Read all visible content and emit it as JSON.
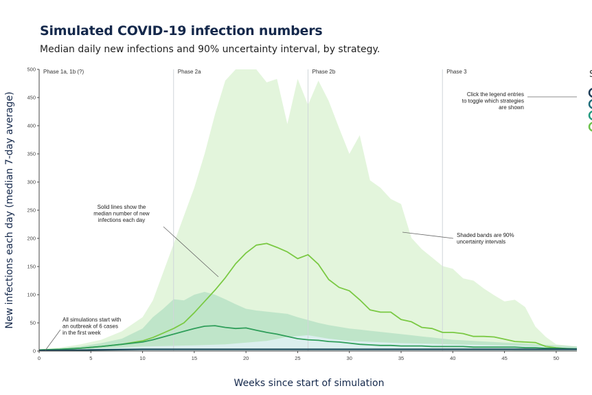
{
  "header": {
    "title": "Simulated COVID-19 infection numbers",
    "subtitle": "Median daily new infections and 90% uncertainty interval, by strategy."
  },
  "colors": {
    "band_light": "#e2f4da",
    "band_mid": "#b9e2c6",
    "band_pale": "#dceff0",
    "line_light_green": "#7ac943",
    "line_green": "#2f9e5a",
    "line_dark": "#1c4a5a",
    "legend_colors": [
      "#1d3c57",
      "#1f6d7a",
      "#229a7e",
      "#6cc24a"
    ]
  },
  "chart_data": {
    "type": "line",
    "xlabel": "Weeks since start of simulation",
    "ylabel": "New infections each day (median 7-day average)",
    "xlim": [
      0,
      52
    ],
    "ylim": [
      0,
      500
    ],
    "xticks": [
      0,
      5,
      10,
      15,
      20,
      25,
      30,
      35,
      40,
      45,
      50
    ],
    "yticks": [
      0,
      50,
      100,
      150,
      200,
      250,
      300,
      350,
      400,
      450,
      500
    ],
    "grid": false,
    "legend": "top-right (partially visible)",
    "legend_title": "S",
    "phases": [
      {
        "label": "Phase 1a, 1b (?)",
        "week": 0
      },
      {
        "label": "Phase 2a",
        "week": 13
      },
      {
        "label": "Phase 2b",
        "week": 26
      },
      {
        "label": "Phase 3",
        "week": 39
      }
    ],
    "annotations": [
      {
        "text": [
          "All simulations start with",
          "an outbreak of 6 cases",
          "in the first week"
        ]
      },
      {
        "text": [
          "Solid lines show the",
          "median number of new",
          "infections each day"
        ]
      },
      {
        "text": [
          "Shaded bands are 90%",
          "uncertainty intervals"
        ]
      },
      {
        "text": [
          "Click the legend entries",
          "to toggle which strategies",
          "are shown"
        ]
      }
    ],
    "series": [
      {
        "color": "#7ac943",
        "band_color": "#e2f4da",
        "x": [
          0,
          2,
          4,
          6,
          8,
          10,
          11,
          12,
          13,
          14,
          15,
          16,
          17,
          18,
          19,
          20,
          21,
          22,
          23,
          24,
          25,
          26,
          27,
          28,
          29,
          30,
          31,
          32,
          33,
          34,
          35,
          36,
          37,
          38,
          39,
          40,
          41,
          42,
          43,
          44,
          45,
          46,
          47,
          48,
          49,
          50,
          52
        ],
        "median": [
          2,
          3,
          5,
          8,
          12,
          18,
          24,
          32,
          40,
          50,
          68,
          88,
          108,
          130,
          155,
          174,
          188,
          191,
          184,
          176,
          164,
          171,
          154,
          127,
          113,
          107,
          91,
          73,
          69,
          69,
          56,
          52,
          42,
          40,
          33,
          33,
          31,
          26,
          26,
          25,
          21,
          17,
          16,
          15,
          8,
          6,
          3
        ],
        "upper": [
          3,
          6,
          12,
          20,
          35,
          60,
          90,
          140,
          190,
          240,
          290,
          350,
          420,
          480,
          500,
          500,
          500,
          477,
          483,
          403,
          483,
          437,
          480,
          444,
          396,
          350,
          383,
          303,
          290,
          270,
          261,
          201,
          181,
          166,
          151,
          146,
          129,
          125,
          111,
          99,
          88,
          91,
          78,
          43,
          25,
          12,
          8
        ],
        "lower": [
          1,
          1,
          2,
          2,
          3,
          4,
          4,
          5,
          6,
          6,
          7,
          8,
          8,
          9,
          9,
          9,
          9,
          9,
          8,
          8,
          8,
          7,
          7,
          6,
          6,
          5,
          5,
          4,
          4,
          4,
          3,
          3,
          3,
          3,
          2,
          2,
          2,
          2,
          2,
          2,
          1,
          1,
          1,
          1,
          1,
          1,
          1
        ]
      },
      {
        "color": "#2f9e5a",
        "band_color": "#b9e2c6",
        "x": [
          0,
          2,
          4,
          6,
          8,
          10,
          11,
          12,
          13,
          14,
          15,
          16,
          17,
          18,
          19,
          20,
          21,
          22,
          23,
          24,
          25,
          26,
          27,
          28,
          29,
          30,
          31,
          32,
          33,
          34,
          35,
          36,
          37,
          38,
          39,
          40,
          41,
          42,
          43,
          44,
          45,
          46,
          47,
          48,
          49,
          50,
          52
        ],
        "median": [
          2,
          3,
          5,
          8,
          12,
          16,
          20,
          25,
          30,
          35,
          40,
          44,
          45,
          42,
          40,
          41,
          37,
          33,
          30,
          26,
          22,
          20,
          19,
          17,
          16,
          14,
          12,
          11,
          10,
          10,
          9,
          9,
          9,
          8,
          8,
          8,
          8,
          7,
          7,
          7,
          7,
          7,
          6,
          6,
          5,
          5,
          4
        ],
        "upper": [
          3,
          5,
          8,
          14,
          22,
          40,
          60,
          75,
          92,
          90,
          100,
          105,
          100,
          92,
          83,
          75,
          72,
          70,
          68,
          66,
          60,
          55,
          50,
          46,
          43,
          40,
          38,
          36,
          34,
          32,
          30,
          28,
          26,
          24,
          22,
          20,
          19,
          18,
          17,
          16,
          15,
          14,
          13,
          12,
          11,
          10,
          8
        ],
        "lower": [
          1,
          1,
          2,
          2,
          3,
          3,
          4,
          4,
          5,
          5,
          6,
          6,
          6,
          6,
          6,
          6,
          6,
          5,
          5,
          5,
          5,
          4,
          4,
          4,
          4,
          3,
          3,
          3,
          3,
          3,
          3,
          2,
          2,
          2,
          2,
          2,
          2,
          2,
          2,
          2,
          2,
          1,
          1,
          1,
          1,
          1,
          1
        ]
      },
      {
        "color": "#1c4a5a",
        "band_color": "#dceff0",
        "x": [
          0,
          5,
          10,
          15,
          18,
          20,
          22,
          24,
          26,
          28,
          30,
          35,
          40,
          45,
          50,
          52
        ],
        "median": [
          1,
          2,
          3,
          3,
          3,
          3,
          3,
          3,
          3,
          3,
          3,
          3,
          3,
          3,
          3,
          3
        ],
        "upper": [
          2,
          4,
          8,
          10,
          12,
          15,
          18,
          25,
          28,
          22,
          18,
          14,
          12,
          10,
          8,
          6
        ],
        "lower": [
          0,
          0,
          1,
          1,
          1,
          1,
          1,
          1,
          1,
          1,
          1,
          1,
          1,
          1,
          1,
          1
        ]
      }
    ]
  }
}
